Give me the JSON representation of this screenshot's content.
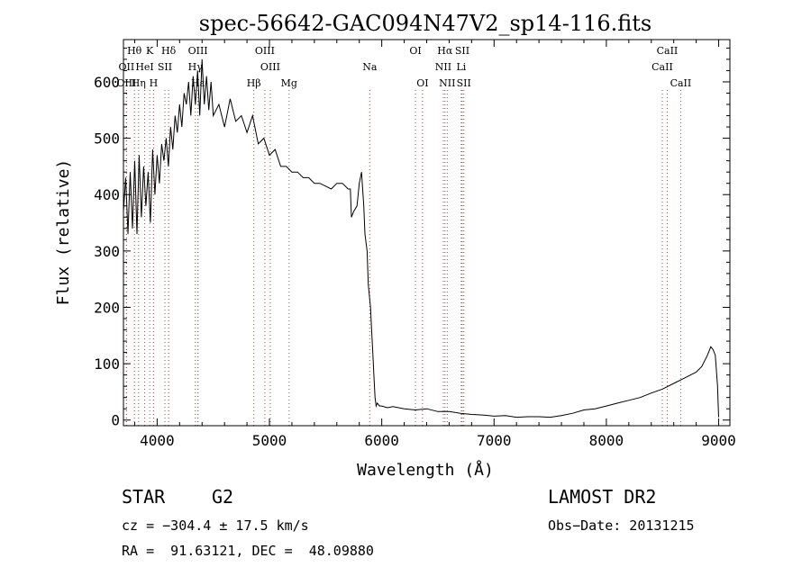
{
  "chart_data": {
    "type": "line",
    "title": "spec-56642-GAC094N47V2_sp14-116.fits",
    "xlabel": "Wavelength (Å)",
    "ylabel": "Flux (relative)",
    "xlim": [
      3700,
      9100
    ],
    "ylim": [
      -10,
      675
    ],
    "x_ticks": [
      4000,
      5000,
      6000,
      7000,
      8000,
      9000
    ],
    "x_tick_labels": [
      "4000",
      "5000",
      "6000",
      "7000",
      "8000",
      "9000"
    ],
    "y_ticks": [
      0,
      100,
      200,
      300,
      400,
      500,
      600
    ],
    "y_tick_labels": [
      "0",
      "100",
      "200",
      "300",
      "400",
      "500",
      "600"
    ],
    "grid": false,
    "series": [
      {
        "color": "#000000",
        "x": [
          3700,
          3720,
          3740,
          3760,
          3780,
          3800,
          3820,
          3840,
          3860,
          3880,
          3900,
          3920,
          3940,
          3960,
          3980,
          4000,
          4020,
          4040,
          4060,
          4080,
          4100,
          4120,
          4140,
          4160,
          4180,
          4200,
          4220,
          4240,
          4260,
          4280,
          4300,
          4320,
          4340,
          4360,
          4380,
          4400,
          4420,
          4440,
          4460,
          4480,
          4500,
          4550,
          4600,
          4650,
          4700,
          4750,
          4800,
          4850,
          4900,
          4950,
          5000,
          5050,
          5100,
          5150,
          5200,
          5250,
          5300,
          5350,
          5400,
          5450,
          5500,
          5550,
          5600,
          5650,
          5700,
          5720,
          5730,
          5750,
          5780,
          5800,
          5820,
          5840,
          5850,
          5870,
          5880,
          5900,
          5910,
          5920,
          5930,
          5940,
          5950,
          5960,
          5980,
          6000,
          6050,
          6100,
          6200,
          6300,
          6400,
          6500,
          6600,
          6700,
          6800,
          6900,
          7000,
          7100,
          7200,
          7300,
          7400,
          7500,
          7600,
          7700,
          7800,
          7900,
          8000,
          8100,
          8200,
          8300,
          8400,
          8500,
          8600,
          8700,
          8800,
          8850,
          8900,
          8930,
          8950,
          8970,
          8990,
          9000
        ],
        "y": [
          370,
          430,
          330,
          440,
          340,
          460,
          330,
          470,
          360,
          450,
          380,
          440,
          350,
          480,
          400,
          470,
          420,
          490,
          460,
          500,
          450,
          520,
          480,
          540,
          510,
          560,
          520,
          580,
          560,
          600,
          540,
          610,
          560,
          620,
          540,
          640,
          560,
          610,
          550,
          600,
          540,
          560,
          520,
          570,
          530,
          540,
          510,
          540,
          490,
          500,
          470,
          480,
          450,
          450,
          440,
          440,
          430,
          430,
          420,
          420,
          415,
          410,
          420,
          420,
          410,
          410,
          360,
          370,
          380,
          420,
          440,
          380,
          330,
          300,
          240,
          200,
          160,
          120,
          80,
          40,
          25,
          30,
          25,
          25,
          22,
          24,
          20,
          18,
          20,
          15,
          15,
          12,
          10,
          9,
          7,
          8,
          5,
          6,
          6,
          5,
          8,
          12,
          18,
          20,
          25,
          30,
          35,
          40,
          48,
          55,
          65,
          75,
          85,
          95,
          115,
          130,
          125,
          115,
          60,
          5
        ]
      }
    ],
    "line_markers": [
      {
        "label": "Hθ",
        "wavelength": 3798,
        "row": 0
      },
      {
        "label": "K",
        "wavelength": 3934,
        "row": 0
      },
      {
        "label": "Hδ",
        "wavelength": 4102,
        "row": 0
      },
      {
        "label": "OIII",
        "wavelength": 4363,
        "row": 0
      },
      {
        "label": "OIII",
        "wavelength": 4959,
        "row": 0
      },
      {
        "label": "OI",
        "wavelength": 6300,
        "row": 0
      },
      {
        "label": "Hα",
        "wavelength": 6563,
        "row": 0
      },
      {
        "label": "SII",
        "wavelength": 6717,
        "row": 0
      },
      {
        "label": "CaII",
        "wavelength": 8542,
        "row": 0
      },
      {
        "label": "OII",
        "wavelength": 3727,
        "row": 1
      },
      {
        "label": "HeI",
        "wavelength": 3889,
        "row": 1
      },
      {
        "label": "SII",
        "wavelength": 4069,
        "row": 1
      },
      {
        "label": "Hγ",
        "wavelength": 4340,
        "row": 1
      },
      {
        "label": "OIII",
        "wavelength": 5007,
        "row": 1
      },
      {
        "label": "Na",
        "wavelength": 5893,
        "row": 1
      },
      {
        "label": "NII",
        "wavelength": 6548,
        "row": 1
      },
      {
        "label": "Li",
        "wavelength": 6708,
        "row": 1
      },
      {
        "label": "CaII",
        "wavelength": 8498,
        "row": 1
      },
      {
        "label": "OIII",
        "wavelength": 3727,
        "row": 2
      },
      {
        "label": "Hη",
        "wavelength": 3835,
        "row": 2
      },
      {
        "label": "H",
        "wavelength": 3968,
        "row": 2
      },
      {
        "label": "Hε",
        "wavelength": 4363,
        "row": 2
      },
      {
        "label": "Hβ",
        "wavelength": 4861,
        "row": 2
      },
      {
        "label": "Mg",
        "wavelength": 5175,
        "row": 2
      },
      {
        "label": "OI",
        "wavelength": 6363,
        "row": 2
      },
      {
        "label": "NII",
        "wavelength": 6583,
        "row": 2
      },
      {
        "label": "SII",
        "wavelength": 6731,
        "row": 2
      },
      {
        "label": "CaII",
        "wavelength": 8662,
        "row": 2
      }
    ]
  },
  "info": {
    "class_label": "STAR",
    "subclass_label": "G2",
    "survey": "LAMOST DR2",
    "cz": "cz = −304.4 ± 17.5 km/s",
    "obs_date": "Obs−Date: 20131215",
    "coords": "RA =  91.63121, DEC =  48.09880"
  }
}
